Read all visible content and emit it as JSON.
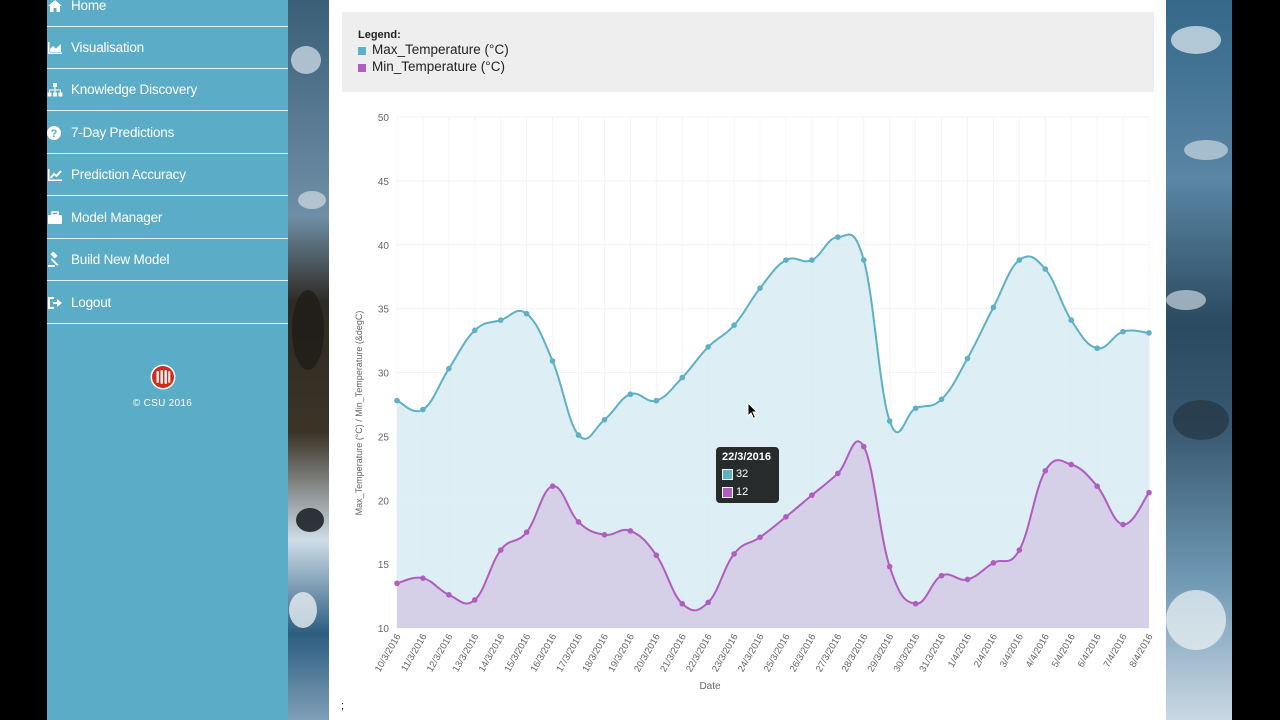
{
  "sidebar": {
    "items": [
      {
        "label": "Home",
        "icon": "home-icon"
      },
      {
        "label": "Visualisation",
        "icon": "area-chart-icon"
      },
      {
        "label": "Knowledge Discovery",
        "icon": "sitemap-icon"
      },
      {
        "label": "7-Day Predictions",
        "icon": "question-circle-icon"
      },
      {
        "label": "Prediction Accuracy",
        "icon": "line-chart-icon"
      },
      {
        "label": "Model Manager",
        "icon": "briefcase-icon"
      },
      {
        "label": "Build New Model",
        "icon": "gavel-icon"
      },
      {
        "label": "Logout",
        "icon": "sign-out-icon"
      }
    ],
    "copyright": "© CSU 2016",
    "logo": "csu-logo"
  },
  "legend": {
    "title": "Legend:",
    "items": [
      "Max_Temperature (°C)",
      "Min_Temperature (°C)"
    ]
  },
  "tooltip": {
    "title": "22/3/2016",
    "values": [
      "32",
      "12"
    ]
  },
  "footer_mark": ";",
  "colors": {
    "sidebar": "#5bacc7",
    "max_line": "#5eb0c6",
    "max_fill": "#d7ebf2",
    "min_line": "#b05cc0",
    "min_fill": "#d4cbe6",
    "legend_bg": "#eeeeee"
  },
  "chart_data": {
    "type": "area",
    "xlabel": "Date",
    "ylabel": "Max_Temperature (°C) / Min_Temperature (&degC)",
    "ylim": [
      10,
      50
    ],
    "yticks": [
      10,
      15,
      20,
      25,
      30,
      35,
      40,
      45,
      50
    ],
    "grid": true,
    "legend": "top",
    "categories": [
      "10/3/2016",
      "11/3/2016",
      "12/3/2016",
      "13/3/2016",
      "14/3/2016",
      "15/3/2016",
      "16/3/2016",
      "17/3/2016",
      "18/3/2016",
      "19/3/2016",
      "20/3/2016",
      "21/3/2016",
      "22/3/2016",
      "23/3/2016",
      "24/3/2016",
      "25/3/2016",
      "26/3/2016",
      "27/3/2016",
      "28/3/2016",
      "29/3/2016",
      "30/3/2016",
      "31/3/2016",
      "1/4/2016",
      "2/4/2016",
      "3/4/2016",
      "4/4/2016",
      "5/4/2016",
      "6/4/2016",
      "7/4/2016",
      "8/4/2016"
    ],
    "series": [
      {
        "name": "Max_Temperature (°C)",
        "values": [
          27.8,
          27.1,
          30.3,
          33.3,
          34.1,
          34.6,
          30.9,
          25.1,
          26.3,
          28.3,
          27.8,
          29.6,
          32,
          33.7,
          36.6,
          38.8,
          38.8,
          40.6,
          38.8,
          26.2,
          27.2,
          27.9,
          31.1,
          35.1,
          38.8,
          38.1,
          34.1,
          31.9,
          33.2,
          33.1
        ]
      },
      {
        "name": "Min_Temperature (°C)",
        "values": [
          13.5,
          13.9,
          12.6,
          12.2,
          16.1,
          17.5,
          21.1,
          18.3,
          17.3,
          17.6,
          15.7,
          11.9,
          12,
          15.8,
          17.1,
          18.7,
          20.4,
          22.1,
          24.2,
          14.8,
          11.9,
          14.1,
          13.8,
          15.1,
          16.1,
          22.3,
          22.8,
          21.1,
          18.1,
          20.6
        ]
      }
    ]
  }
}
